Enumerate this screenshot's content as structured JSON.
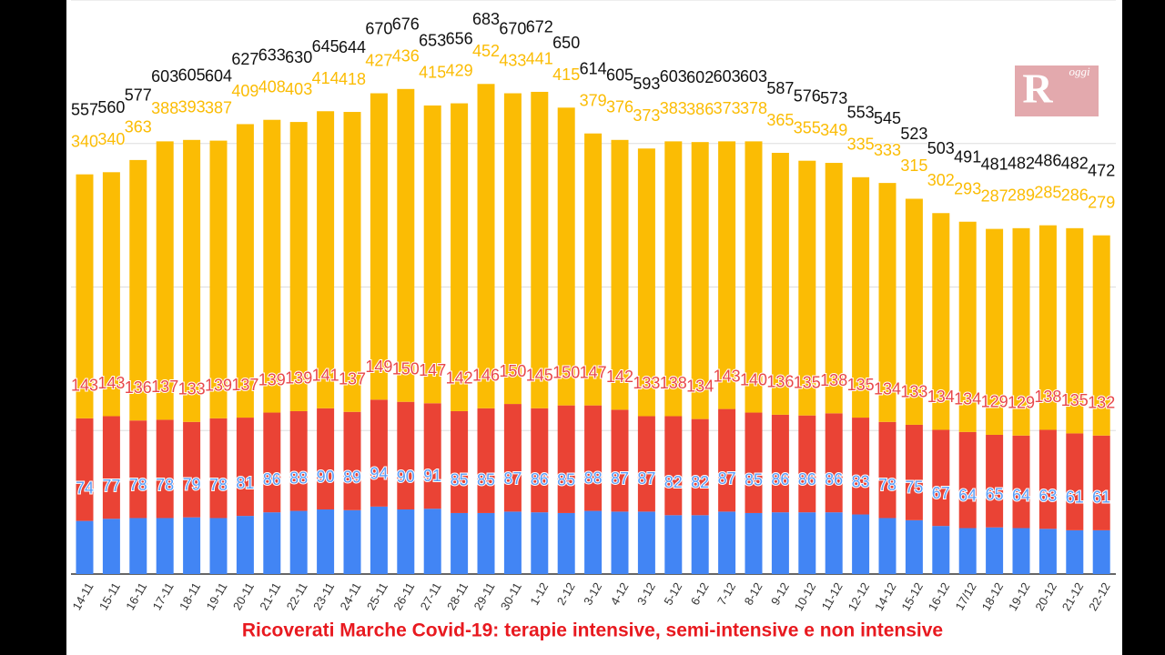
{
  "chart_data": {
    "type": "stacked_bar",
    "title": "Ricoverati Marche Covid-19: terapie intensive, semi-intensive e non intensive",
    "categories": [
      "14-11",
      "15-11",
      "16-11",
      "17-11",
      "18-11",
      "19-11",
      "20-11",
      "21-11",
      "22-11",
      "23-11",
      "24-11",
      "25-11",
      "26-11",
      "27-11",
      "28-11",
      "29-11",
      "30-11",
      "1-12",
      "2-12",
      "3-12",
      "4-12",
      "3-12",
      "5-12",
      "6-12",
      "7-12",
      "8-12",
      "9-12",
      "10-12",
      "11-12",
      "12-12",
      "14-12",
      "15-12",
      "16-12",
      "17/12",
      "18-12",
      "19-12",
      "20-12",
      "21-12",
      "22-12"
    ],
    "series": [
      {
        "color": "#4285f4",
        "label_color": "#5b9cf6",
        "values": [
          74,
          77,
          78,
          78,
          79,
          78,
          81,
          86,
          88,
          90,
          89,
          94,
          90,
          91,
          85,
          85,
          87,
          86,
          85,
          88,
          87,
          87,
          82,
          82,
          87,
          85,
          86,
          86,
          86,
          83,
          78,
          75,
          67,
          64,
          65,
          64,
          63,
          61,
          61
        ]
      },
      {
        "color": "#ea4335",
        "label_color": "#e8474a",
        "values": [
          143,
          143,
          136,
          137,
          133,
          139,
          137,
          139,
          139,
          141,
          137,
          149,
          150,
          147,
          142,
          146,
          150,
          145,
          150,
          147,
          142,
          133,
          138,
          134,
          143,
          140,
          136,
          135,
          138,
          135,
          134,
          133,
          134,
          134,
          129,
          129,
          138,
          135,
          132
        ]
      },
      {
        "color": "#fbbc04",
        "label_color": "#fbbc04",
        "values": [
          340,
          340,
          363,
          388,
          393,
          387,
          409,
          408,
          403,
          414,
          418,
          427,
          436,
          415,
          429,
          452,
          433,
          441,
          415,
          379,
          376,
          373,
          383,
          386,
          373,
          378,
          365,
          355,
          349,
          335,
          333,
          315,
          302,
          293,
          287,
          289,
          285,
          286,
          279
        ]
      }
    ],
    "totals": [
      557,
      560,
      577,
      603,
      605,
      604,
      627,
      633,
      630,
      645,
      644,
      670,
      676,
      653,
      656,
      683,
      670,
      672,
      650,
      614,
      605,
      593,
      603,
      602,
      603,
      603,
      587,
      576,
      573,
      553,
      545,
      523,
      503,
      491,
      481,
      482,
      486,
      482,
      472
    ],
    "ylim": [
      0,
      800
    ],
    "yticks": [
      0,
      200,
      400,
      600,
      800
    ],
    "grid": true
  },
  "logo": {
    "letter": "R",
    "text": "oggi"
  }
}
